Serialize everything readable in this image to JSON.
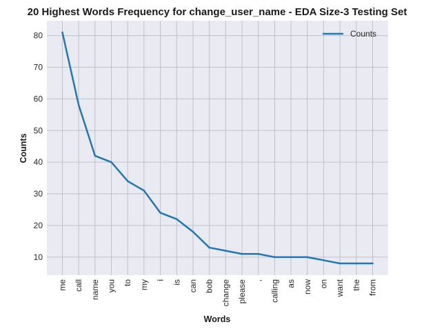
{
  "chart_data": {
    "type": "line",
    "title": "20 Highest Words Frequency for change_user_name - EDA Size-3 Testing Set",
    "xlabel": "Words",
    "ylabel": "Counts",
    "categories": [
      "me",
      "call",
      "name",
      "you",
      "to",
      "my",
      "i",
      "is",
      "can",
      "bob",
      "change",
      "please",
      ",",
      "calling",
      "as",
      "now",
      "on",
      "want",
      "the",
      "from"
    ],
    "series": [
      {
        "name": "Counts",
        "values": [
          81,
          58,
          42,
          40,
          34,
          31,
          24,
          22,
          18,
          13,
          12,
          11,
          11,
          10,
          10,
          10,
          9,
          8,
          8,
          8
        ]
      }
    ],
    "ylim": [
      4.3,
      84.7
    ],
    "yticks": [
      10,
      20,
      30,
      40,
      50,
      60,
      70,
      80
    ],
    "grid": true,
    "legend_position": "top-right",
    "colors": {
      "line": "#1f77b4",
      "plot_background": "#eaeaf2",
      "grid": "#c0c0c8"
    }
  }
}
